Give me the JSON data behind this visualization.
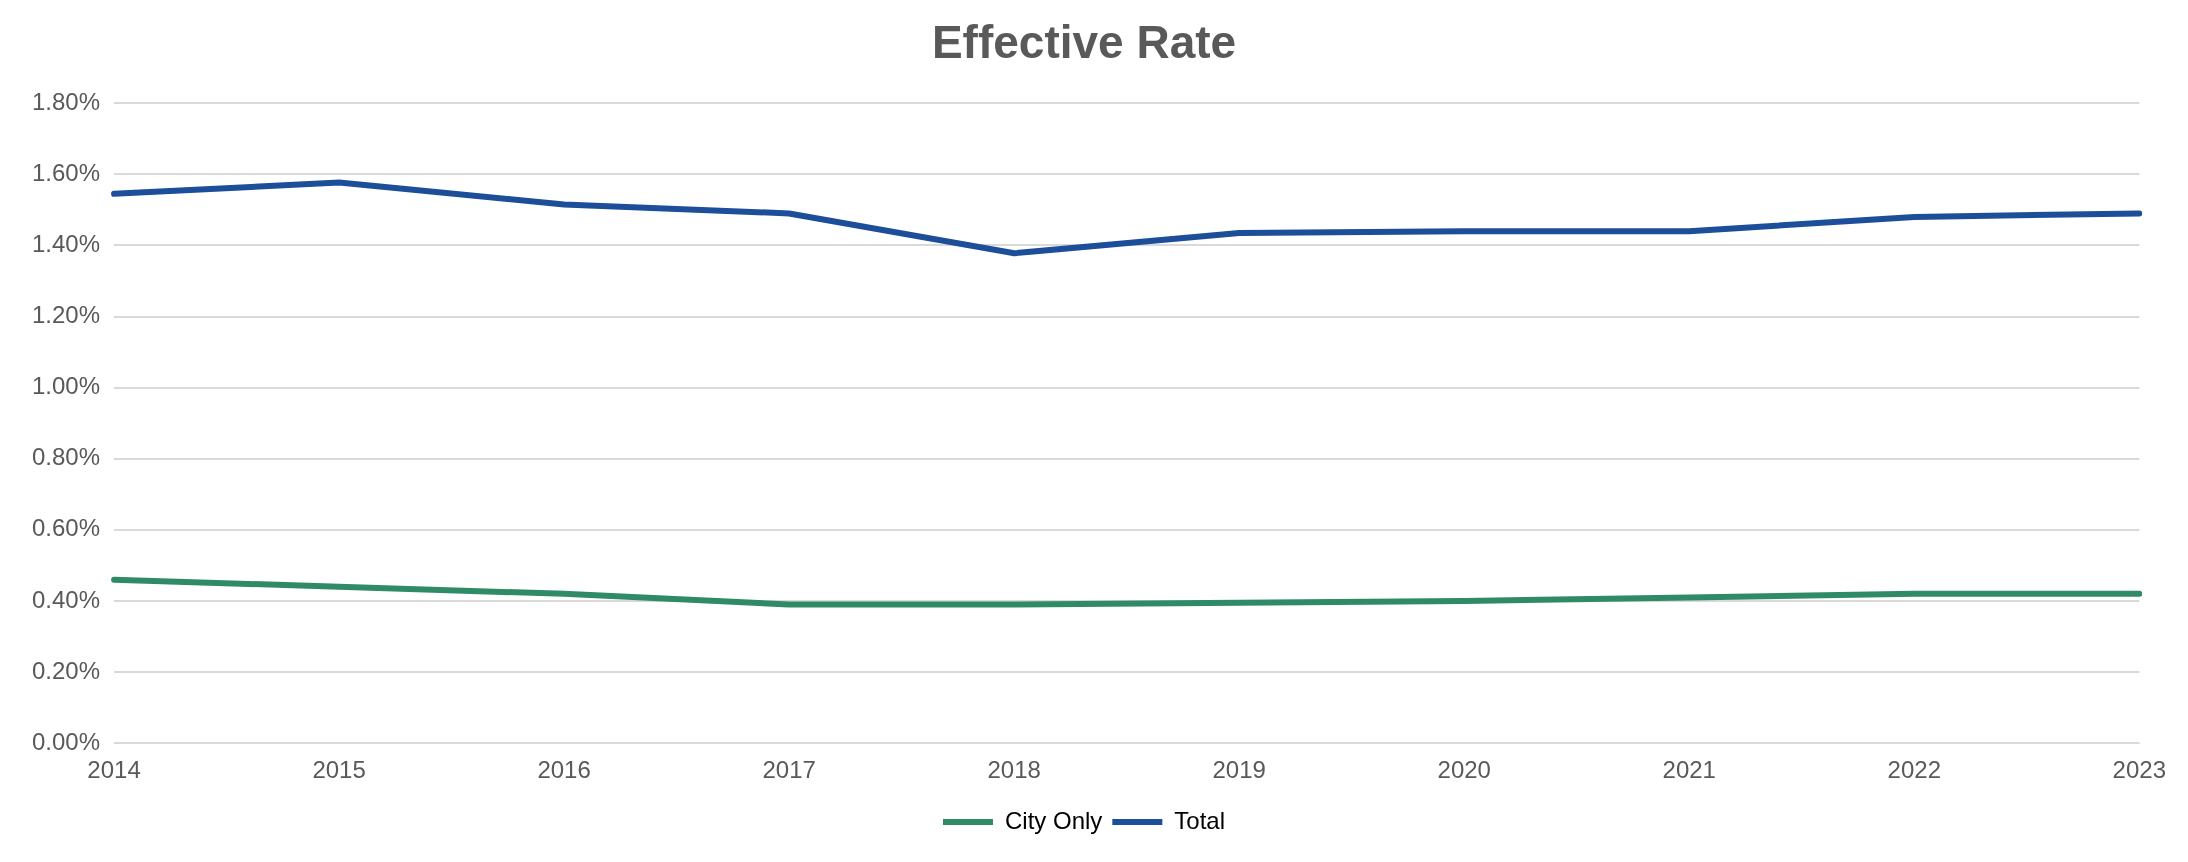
{
  "chart_data": {
    "type": "line",
    "title": "Effective Rate",
    "categories": [
      "2014",
      "2015",
      "2016",
      "2017",
      "2018",
      "2019",
      "2020",
      "2021",
      "2022",
      "2023"
    ],
    "series": [
      {
        "name": "City Only",
        "color": "#2e8b66",
        "values": [
          0.46,
          0.44,
          0.42,
          0.39,
          0.39,
          0.395,
          0.4,
          0.41,
          0.42,
          0.42
        ]
      },
      {
        "name": "Total",
        "color": "#1c4e9a",
        "values": [
          1.545,
          1.577,
          1.515,
          1.49,
          1.378,
          1.435,
          1.44,
          1.44,
          1.48,
          1.49
        ]
      }
    ],
    "ylim": [
      0,
      1.8
    ],
    "yticks": [
      {
        "value": 0,
        "label": "0.00%"
      },
      {
        "value": 0.2,
        "label": "0.20%"
      },
      {
        "value": 0.4,
        "label": "0.40%"
      },
      {
        "value": 0.6,
        "label": "0.60%"
      },
      {
        "value": 0.8,
        "label": "0.80%"
      },
      {
        "value": 1,
        "label": "1.00%"
      },
      {
        "value": 1.2,
        "label": "1.20%"
      },
      {
        "value": 1.4,
        "label": "1.40%"
      },
      {
        "value": 1.6,
        "label": "1.60%"
      },
      {
        "value": 1.8,
        "label": "1.80%"
      }
    ],
    "grid": "y",
    "legend": "bottom",
    "marker": "none",
    "line_style": "solid"
  }
}
